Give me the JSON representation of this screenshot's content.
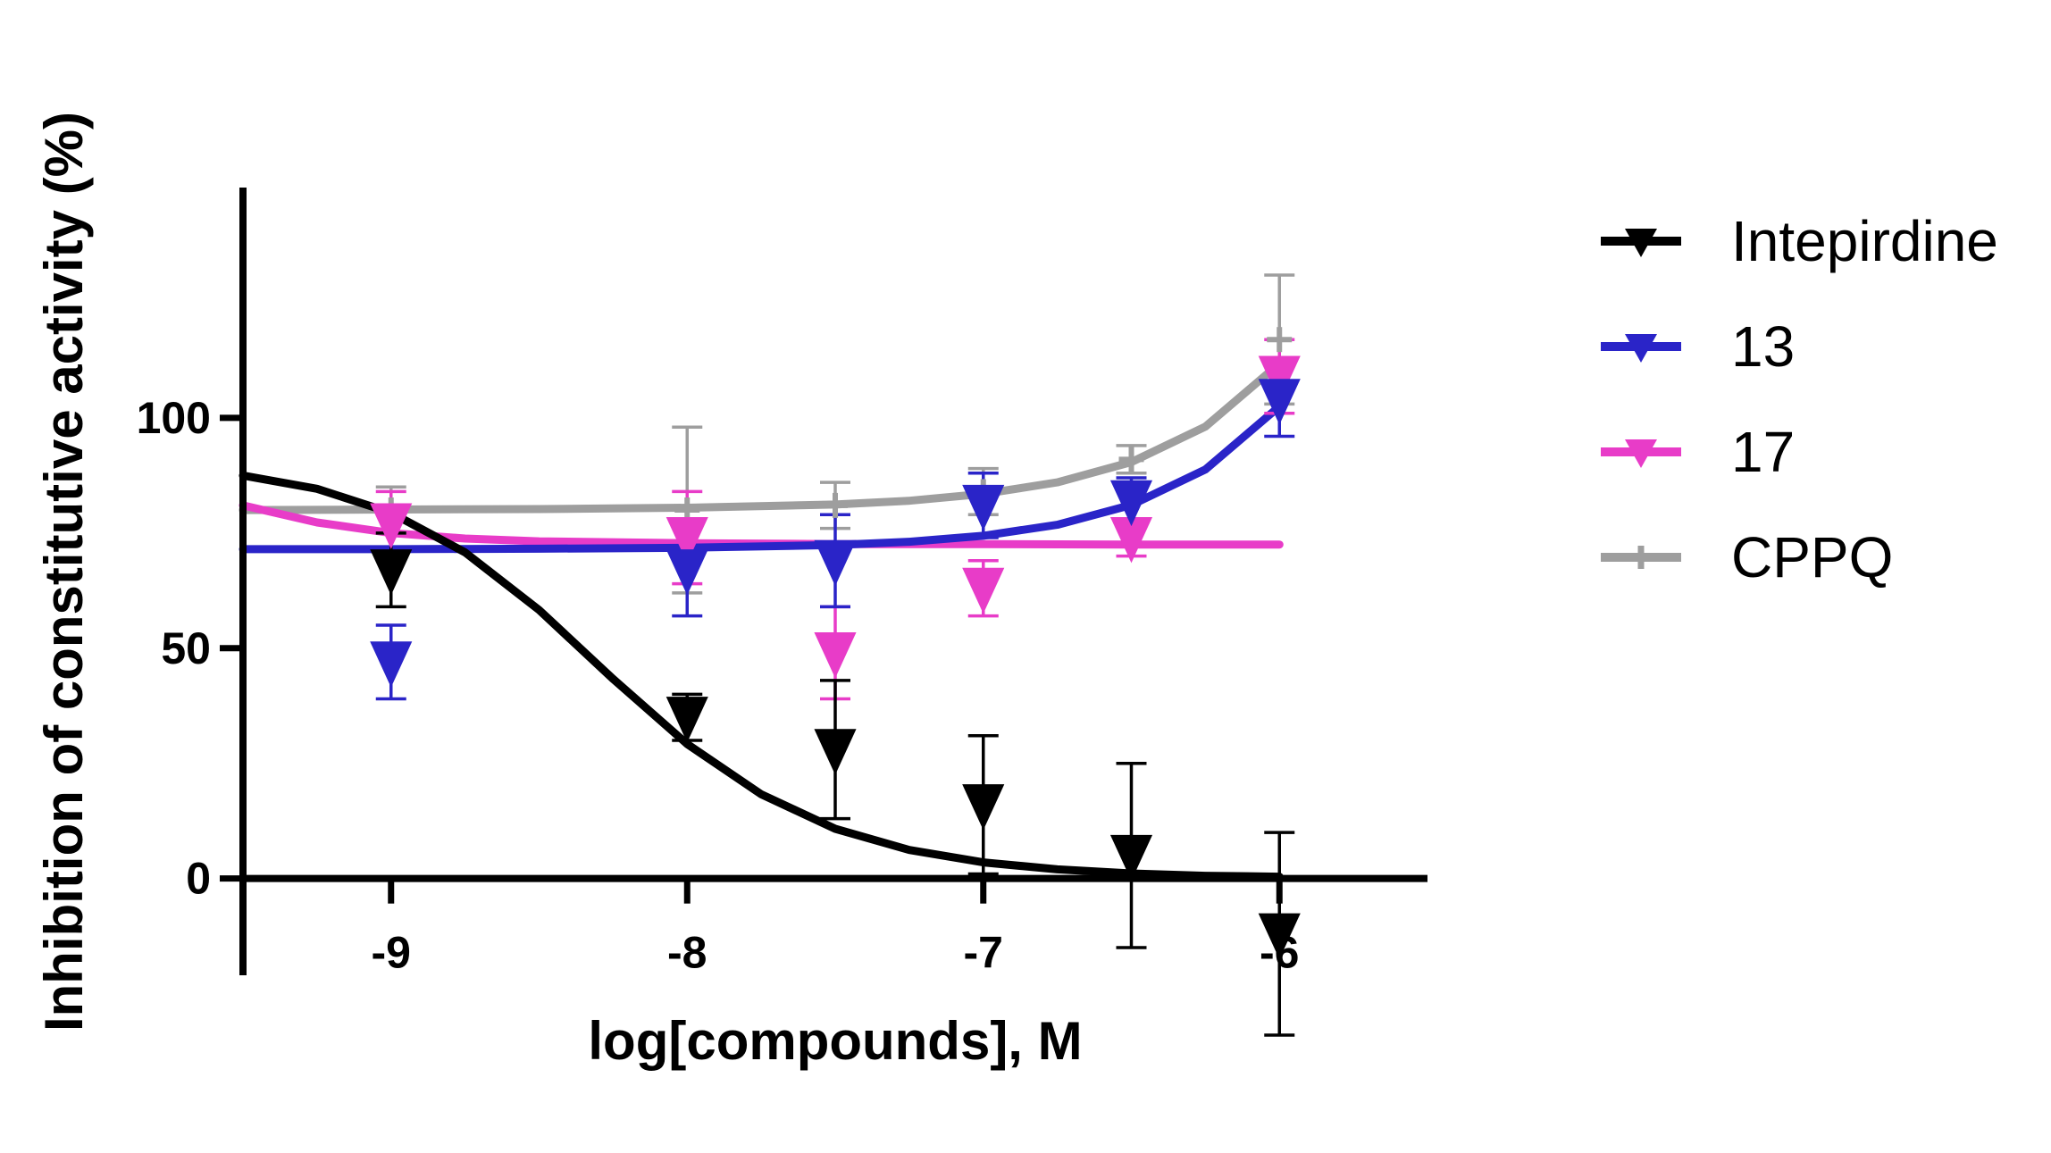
{
  "chart_data": {
    "type": "scatter",
    "xlabel": "log[compounds], M",
    "ylabel": "Inhibition of constitutive activity (%)",
    "xlim": [
      -9.5,
      -5.5
    ],
    "ylim": [
      -21,
      150
    ],
    "x_ticks": [
      -9,
      -8,
      -7,
      -6
    ],
    "x_tick_labels": [
      "-9",
      "-8",
      "-7",
      "-6"
    ],
    "y_ticks": [
      0,
      50,
      100
    ],
    "y_tick_labels": [
      "0",
      "50",
      "100"
    ],
    "grid": false,
    "legend_position": "right",
    "series": [
      {
        "name": "Intepirdine",
        "color": "#000000",
        "marker": "down-triangle",
        "points": [
          {
            "x": -9,
            "y": 67,
            "err": 8
          },
          {
            "x": -8,
            "y": 35,
            "err": 5
          },
          {
            "x": -7.5,
            "y": 28,
            "err": 15
          },
          {
            "x": -7,
            "y": 16,
            "err": 15
          },
          {
            "x": -6.5,
            "y": 5,
            "err": 20
          },
          {
            "x": -6,
            "y": -12,
            "err": 22
          }
        ],
        "fit": [
          [
            -9.5,
            87.5
          ],
          [
            -9.25,
            84.6
          ],
          [
            -9,
            79.4
          ],
          [
            -8.75,
            70.8
          ],
          [
            -8.5,
            58.3
          ],
          [
            -8.25,
            43.3
          ],
          [
            -8,
            29.2
          ],
          [
            -7.75,
            18.3
          ],
          [
            -7.5,
            10.8
          ],
          [
            -7.25,
            6.2
          ],
          [
            -7,
            3.5
          ],
          [
            -6.75,
            2
          ],
          [
            -6.5,
            1.1
          ],
          [
            -6.25,
            0.6
          ],
          [
            -6,
            0.4
          ]
        ]
      },
      {
        "name": "13",
        "color": "#2a24c8",
        "marker": "down-triangle",
        "points": [
          {
            "x": -9,
            "y": 47,
            "err": 8
          },
          {
            "x": -8,
            "y": 67,
            "err": 10
          },
          {
            "x": -7.5,
            "y": 69,
            "err": 10
          },
          {
            "x": -7,
            "y": 81,
            "err": 7
          },
          {
            "x": -6.5,
            "y": 82,
            "err": 5
          },
          {
            "x": -6,
            "y": 104,
            "err": 8
          }
        ],
        "fit": [
          [
            -9.5,
            71.5
          ],
          [
            -9,
            71.5
          ],
          [
            -8.5,
            71.6
          ],
          [
            -8,
            71.8
          ],
          [
            -7.5,
            72.4
          ],
          [
            -7.25,
            73.1
          ],
          [
            -7,
            74.4
          ],
          [
            -6.75,
            76.8
          ],
          [
            -6.5,
            81.1
          ],
          [
            -6.25,
            88.8
          ],
          [
            -6,
            102.5
          ]
        ]
      },
      {
        "name": "17",
        "color": "#e83cc8",
        "marker": "down-triangle",
        "points": [
          {
            "x": -9,
            "y": 77,
            "err": 7
          },
          {
            "x": -8,
            "y": 74,
            "err": 10
          },
          {
            "x": -7.5,
            "y": 49,
            "err": 10
          },
          {
            "x": -7,
            "y": 63,
            "err": 6
          },
          {
            "x": -6.5,
            "y": 74,
            "err": 4
          },
          {
            "x": -6,
            "y": 109,
            "err": 8
          }
        ],
        "fit": [
          [
            -9.5,
            81
          ],
          [
            -9.25,
            77.3
          ],
          [
            -9,
            75
          ],
          [
            -8.75,
            73.8
          ],
          [
            -8.5,
            73.2
          ],
          [
            -8,
            72.8
          ],
          [
            -7.5,
            72.6
          ],
          [
            -7,
            72.6
          ],
          [
            -6.5,
            72.5
          ],
          [
            -6,
            72.5
          ]
        ]
      },
      {
        "name": "CPPQ",
        "color": "#9e9e9e",
        "marker": "plus",
        "points": [
          {
            "x": -9,
            "y": 80,
            "err": 5
          },
          {
            "x": -8,
            "y": 80,
            "err": 18
          },
          {
            "x": -7.5,
            "y": 81,
            "err": 5
          },
          {
            "x": -7,
            "y": 84,
            "err": 5
          },
          {
            "x": -6.5,
            "y": 91,
            "err": 3
          },
          {
            "x": -6,
            "y": 117,
            "err": 14
          }
        ],
        "fit": [
          [
            -9.5,
            80
          ],
          [
            -9,
            80.1
          ],
          [
            -8.5,
            80.2
          ],
          [
            -8,
            80.5
          ],
          [
            -7.5,
            81.2
          ],
          [
            -7.25,
            82
          ],
          [
            -7,
            83.5
          ],
          [
            -6.75,
            86
          ],
          [
            -6.5,
            90.4
          ],
          [
            -6.25,
            98.1
          ],
          [
            -6,
            111.8
          ]
        ]
      }
    ]
  }
}
